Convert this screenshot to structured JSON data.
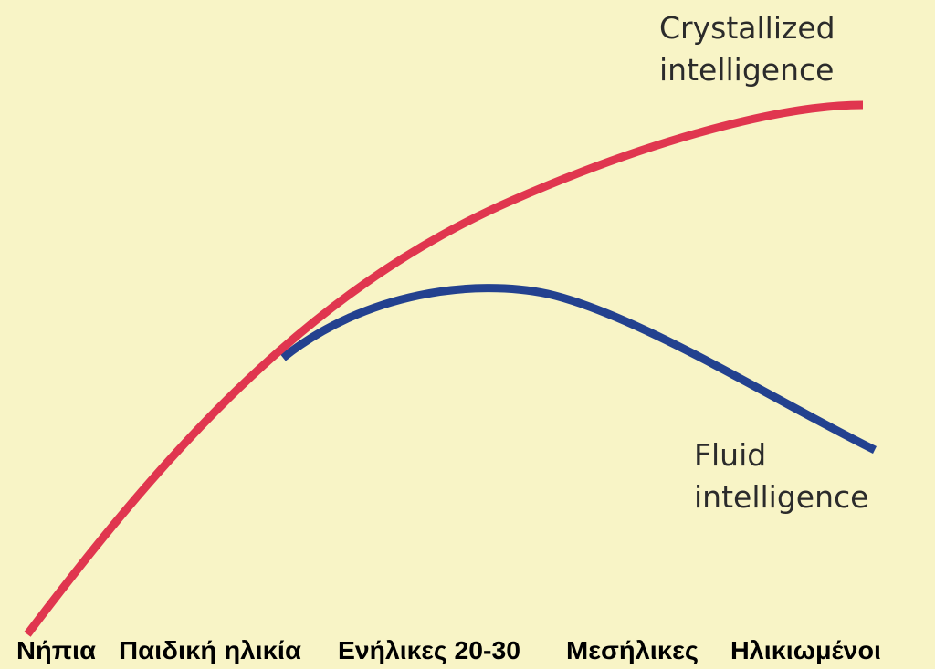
{
  "curves": {
    "crystallized": [
      "Crystallized",
      "intelligence"
    ],
    "fluid": [
      "Fluid",
      "intelligence"
    ]
  },
  "age_labels": [
    "Νήπια",
    "Παιδική ηλικία",
    "Ενήλικες 20-30",
    "Μεσήλικες",
    "Ηλικιωμένοι"
  ]
}
